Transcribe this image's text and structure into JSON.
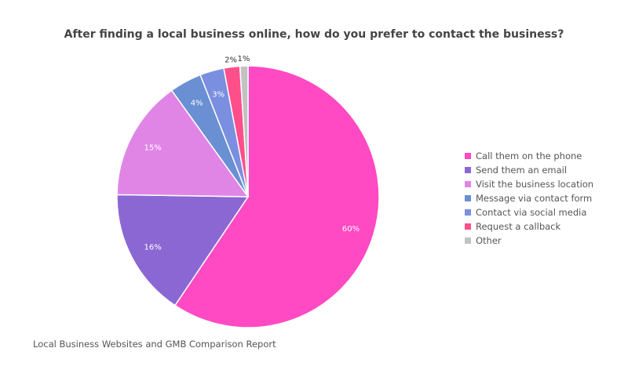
{
  "chart_data": {
    "type": "pie",
    "title": "After finding a local business online, how do you prefer to contact the business?",
    "categories": [
      "Call them on the phone",
      "Send them an email",
      "Visit the business location",
      "Message via contact form",
      "Contact via social media",
      "Request a callback",
      "Other"
    ],
    "values": [
      60,
      16,
      15,
      4,
      3,
      2,
      1
    ],
    "labels": [
      "60%",
      "16%",
      "15%",
      "4%",
      "3%",
      "2%",
      "1%"
    ],
    "colors": [
      "#ff4ac3",
      "#8b67d4",
      "#e085e6",
      "#6a8fd2",
      "#7b8fe0",
      "#ff4f8a",
      "#c2c2c2"
    ],
    "legend_position": "right",
    "start_angle": "12 o'clock",
    "direction": "clockwise"
  },
  "footer": {
    "source": "Local Business Websites and GMB Comparison Report"
  }
}
